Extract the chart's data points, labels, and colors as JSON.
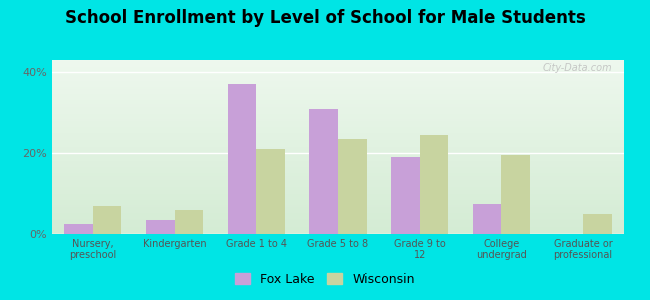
{
  "title": "School Enrollment by Level of School for Male Students",
  "categories": [
    "Nursery,\npreschool",
    "Kindergarten",
    "Grade 1 to 4",
    "Grade 5 to 8",
    "Grade 9 to\n12",
    "College\nundergrad",
    "Graduate or\nprofessional"
  ],
  "fox_lake": [
    2.5,
    3.5,
    37.0,
    31.0,
    19.0,
    7.5,
    0.0
  ],
  "wisconsin": [
    7.0,
    6.0,
    21.0,
    23.5,
    24.5,
    19.5,
    5.0
  ],
  "fox_lake_color": "#c8a0d8",
  "wisconsin_color": "#c8d4a0",
  "background_color": "#00e5e5",
  "ylim": [
    0,
    43
  ],
  "yticks": [
    0,
    20,
    40
  ],
  "ytick_labels": [
    "0%",
    "20%",
    "40%"
  ],
  "title_fontsize": 12,
  "legend_labels": [
    "Fox Lake",
    "Wisconsin"
  ],
  "bar_width": 0.35,
  "watermark": "City-Data.com"
}
